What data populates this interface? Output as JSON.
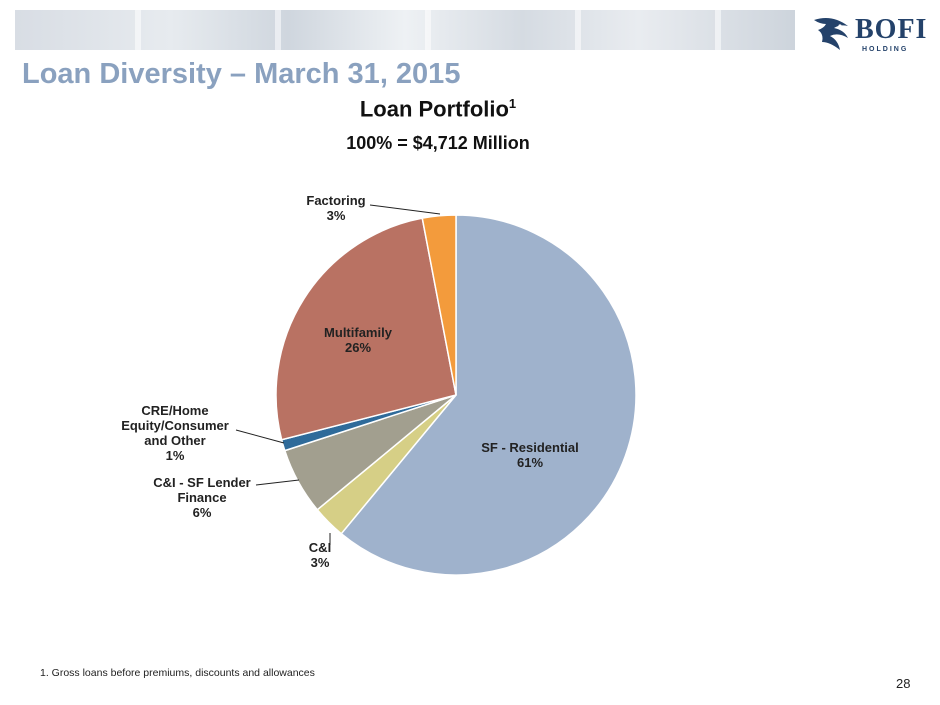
{
  "page": {
    "title": "Loan Diversity – March 31, 2015",
    "footnote": "1.  Gross loans before premiums, discounts and allowances",
    "page_number": "28"
  },
  "logo": {
    "text": "BOFI",
    "subtext": "HOLDING"
  },
  "chart_data": {
    "type": "pie",
    "title": "Loan Portfolio",
    "title_superscript": "1",
    "subtitle": "100% = $4,712 Million",
    "slices": [
      {
        "label": "SF - Residential",
        "value": 61,
        "value_label": "61%",
        "color": "#9fb2cc"
      },
      {
        "label": "C&I",
        "value": 3,
        "value_label": "3%",
        "color": "#d6cf86"
      },
      {
        "label": "C&I - SF Lender Finance",
        "value": 6,
        "value_label": "6%",
        "color": "#a29f8f"
      },
      {
        "label": "CRE/Home Equity/Consumer and Other",
        "value": 1,
        "value_label": "1%",
        "color": "#2f6b9a"
      },
      {
        "label": "Multifamily",
        "value": 26,
        "value_label": "26%",
        "color": "#b97263"
      },
      {
        "label": "Factoring",
        "value": 3,
        "value_label": "3%",
        "color": "#f39b3c"
      }
    ]
  }
}
